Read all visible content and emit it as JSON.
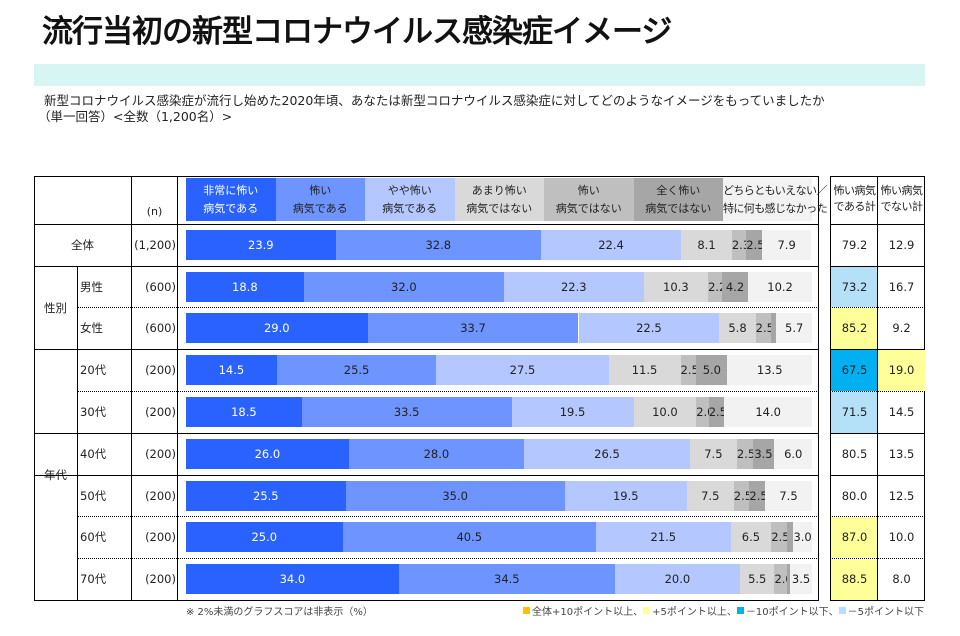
{
  "title": "流行当初の新型コロナウイルス感染症イメージ",
  "question": {
    "line1": "新型コロナウイルス感染症が流行し始めた2020年頃、あなたは新型コロナウイルス感染症に対してどのようなイメージをもっていましたか",
    "line2": "（単一回答）<全数（1,200名）>"
  },
  "table": {
    "n_label": "(n)",
    "header_columns": [
      {
        "line1": "非常に怖い",
        "line2": "病気である"
      },
      {
        "line1": "怖い",
        "line2": "病気である"
      },
      {
        "line1": "やや怖い",
        "line2": "病気である"
      },
      {
        "line1": "あまり怖い",
        "line2": "病気ではない"
      },
      {
        "line1": "怖い",
        "line2": "病気ではない"
      },
      {
        "line1": "全く怖い",
        "line2": "病気ではない"
      },
      {
        "line1": "どちらともいえない／",
        "line2": "特に何も感じなかった"
      }
    ],
    "total_headers": [
      {
        "line1": "怖い病気",
        "line2": "である計"
      },
      {
        "line1": "怖い病気",
        "line2": "でない計"
      }
    ],
    "groups": [
      {
        "label": "性別",
        "first_row": 1,
        "last_row": 2
      },
      {
        "label": "年代",
        "first_row": 3,
        "last_row": 8
      }
    ],
    "rows": [
      {
        "label": "全体",
        "n": "(1,200)",
        "scary_total": 79.2,
        "not_scary_total": 12.9,
        "scary_highlight": null,
        "not_scary_highlight": null
      },
      {
        "label": "男性",
        "n": "(600)",
        "scary_total": 73.2,
        "not_scary_total": 16.7,
        "scary_highlight": "minus5",
        "not_scary_highlight": null
      },
      {
        "label": "女性",
        "n": "(600)",
        "scary_total": 85.2,
        "not_scary_total": 9.2,
        "scary_highlight": "plus5",
        "not_scary_highlight": null
      },
      {
        "label": "20代",
        "n": "(200)",
        "scary_total": 67.5,
        "not_scary_total": 19.0,
        "scary_highlight": "minus10",
        "not_scary_highlight": "plus5"
      },
      {
        "label": "30代",
        "n": "(200)",
        "scary_total": 71.5,
        "not_scary_total": 14.5,
        "scary_highlight": "minus5",
        "not_scary_highlight": null
      },
      {
        "label": "40代",
        "n": "(200)",
        "scary_total": 80.5,
        "not_scary_total": 13.5,
        "scary_highlight": null,
        "not_scary_highlight": null
      },
      {
        "label": "50代",
        "n": "(200)",
        "scary_total": 80.0,
        "not_scary_total": 12.5,
        "scary_highlight": null,
        "not_scary_highlight": null
      },
      {
        "label": "60代",
        "n": "(200)",
        "scary_total": 87.0,
        "not_scary_total": 10.0,
        "scary_highlight": "plus5",
        "not_scary_highlight": null
      },
      {
        "label": "70代",
        "n": "(200)",
        "scary_total": 88.5,
        "not_scary_total": 8.0,
        "scary_highlight": "plus5",
        "not_scary_highlight": null
      }
    ],
    "highlight_colors": {
      "plus10": "#FFC000",
      "plus5": "#FFFF99",
      "minus10": "#00B0F0",
      "minus5": "#B4E1F8"
    }
  },
  "footnote": "※ 2%未満のグラフスコアは非表示（%）",
  "legend": [
    {
      "key": "plus10",
      "color": "#FFC000",
      "text": "全体+10ポイント以上"
    },
    {
      "key": "plus5",
      "color": "#FFFF99",
      "text": "+5ポイント以上"
    },
    {
      "key": "minus10",
      "color": "#00B0F0",
      "text": "－10ポイント以下"
    },
    {
      "key": "minus5",
      "color": "#B4E1F8",
      "text": "－5ポイント以下"
    }
  ],
  "chart_data": {
    "type": "bar",
    "orientation": "horizontal",
    "stacked": true,
    "title": "流行当初の新型コロナウイルス感染症イメージ",
    "unit": "%",
    "xlim": [
      0,
      100
    ],
    "label_threshold": 2.0,
    "categories": [
      "全体",
      "男性",
      "女性",
      "20代",
      "30代",
      "40代",
      "50代",
      "60代",
      "70代"
    ],
    "series": [
      {
        "name": "非常に怖い病気である",
        "color": "#2962FF",
        "text_color": "#FFFFFF",
        "values": [
          23.9,
          18.8,
          29.0,
          14.5,
          18.5,
          26.0,
          25.5,
          25.0,
          34.0
        ]
      },
      {
        "name": "怖い病気である",
        "color": "#6E95FF",
        "text_color": "#222222",
        "values": [
          32.8,
          32.0,
          33.7,
          25.5,
          33.5,
          28.0,
          35.0,
          40.5,
          34.5
        ]
      },
      {
        "name": "やや怖い病気である",
        "color": "#B4C7FF",
        "text_color": "#222222",
        "values": [
          22.4,
          22.3,
          22.5,
          27.5,
          19.5,
          26.5,
          19.5,
          21.5,
          20.0
        ]
      },
      {
        "name": "あまり怖い病気ではない",
        "color": "#D9D9D9",
        "text_color": "#222222",
        "values": [
          8.1,
          10.3,
          5.8,
          11.5,
          10.0,
          7.5,
          7.5,
          6.5,
          5.5
        ]
      },
      {
        "name": "怖い病気ではない",
        "color": "#BFBFBF",
        "text_color": "#222222",
        "values": [
          2.3,
          2.2,
          2.5,
          2.5,
          2.0,
          2.5,
          2.5,
          2.5,
          2.0
        ]
      },
      {
        "name": "全く怖い病気ではない",
        "color": "#A6A6A6",
        "text_color": "#222222",
        "values": [
          2.5,
          4.2,
          0.8,
          5.0,
          2.5,
          3.5,
          2.5,
          1.0,
          0.5
        ]
      },
      {
        "name": "どちらともいえない／特に何も感じなかった",
        "color": "#F2F2F2",
        "text_color": "#222222",
        "values": [
          7.9,
          10.2,
          5.7,
          13.5,
          14.0,
          6.0,
          7.5,
          3.0,
          3.5
        ]
      }
    ]
  }
}
